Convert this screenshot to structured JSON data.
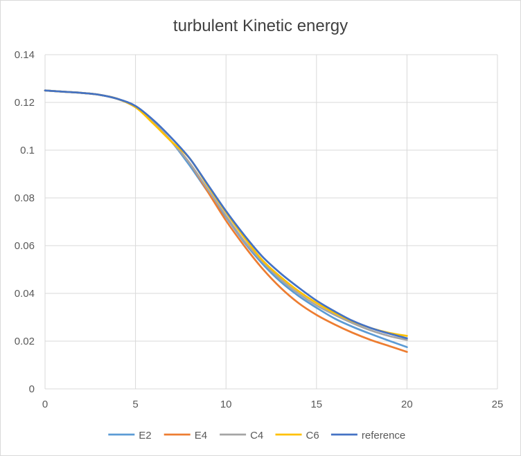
{
  "chart_data": {
    "type": "line",
    "title": "turbulent  Kinetic energy",
    "xlabel": "",
    "ylabel": "",
    "xlim": [
      0,
      25
    ],
    "ylim": [
      0,
      0.14
    ],
    "x_ticks": [
      "0",
      "5",
      "10",
      "15",
      "20",
      "25"
    ],
    "y_ticks": [
      "0",
      "0.02",
      "0.04",
      "0.06",
      "0.08",
      "0.1",
      "0.12",
      "0.14"
    ],
    "grid": true,
    "legend_position": "bottom",
    "series": [
      {
        "name": "E2",
        "color": "#5b9bd5",
        "x": [
          0,
          1,
          2,
          3,
          4,
          5,
          6,
          7,
          8,
          9,
          10,
          11,
          12,
          13,
          14,
          15,
          16,
          17,
          18,
          19,
          20
        ],
        "y": [
          0.125,
          0.1245,
          0.124,
          0.1232,
          0.1215,
          0.118,
          0.1115,
          0.1035,
          0.0935,
          0.0825,
          0.072,
          0.0615,
          0.0525,
          0.045,
          0.039,
          0.034,
          0.0295,
          0.026,
          0.023,
          0.0202,
          0.0175
        ]
      },
      {
        "name": "E4",
        "color": "#ed7d31",
        "x": [
          0,
          1,
          2,
          3,
          4,
          5,
          6,
          7,
          8,
          9,
          10,
          11,
          12,
          13,
          14,
          15,
          16,
          17,
          18,
          19,
          20
        ],
        "y": [
          0.125,
          0.1245,
          0.124,
          0.1232,
          0.1215,
          0.118,
          0.1115,
          0.1035,
          0.0945,
          0.0825,
          0.0705,
          0.06,
          0.0505,
          0.0425,
          0.036,
          0.031,
          0.027,
          0.0235,
          0.0205,
          0.018,
          0.0155
        ]
      },
      {
        "name": "C4",
        "color": "#a5a5a5",
        "x": [
          0,
          1,
          2,
          3,
          4,
          5,
          6,
          7,
          8,
          9,
          10,
          11,
          12,
          13,
          14,
          15,
          16,
          17,
          18,
          19,
          20
        ],
        "y": [
          0.125,
          0.1245,
          0.124,
          0.1232,
          0.1215,
          0.118,
          0.1115,
          0.1035,
          0.0945,
          0.0835,
          0.0725,
          0.062,
          0.0535,
          0.046,
          0.04,
          0.035,
          0.031,
          0.0275,
          0.0245,
          0.0222,
          0.0205
        ]
      },
      {
        "name": "C6",
        "color": "#ffc000",
        "x": [
          0,
          1,
          2,
          3,
          4,
          5,
          6,
          7,
          8,
          9,
          10,
          11,
          12,
          13,
          14,
          15,
          16,
          17,
          18,
          19,
          20
        ],
        "y": [
          0.125,
          0.1245,
          0.124,
          0.1232,
          0.1215,
          0.118,
          0.111,
          0.1035,
          0.0965,
          0.085,
          0.074,
          0.0635,
          0.054,
          0.047,
          0.041,
          0.036,
          0.0318,
          0.0283,
          0.0255,
          0.0235,
          0.0222
        ]
      },
      {
        "name": "reference",
        "color": "#4472c4",
        "x": [
          0,
          1,
          2,
          3,
          4,
          5,
          6,
          7,
          8,
          9,
          10,
          11,
          12,
          13,
          14,
          15,
          16,
          17,
          18,
          19,
          20
        ],
        "y": [
          0.125,
          0.1245,
          0.124,
          0.1232,
          0.1215,
          0.1185,
          0.1125,
          0.105,
          0.0965,
          0.0855,
          0.0745,
          0.0645,
          0.0555,
          0.0485,
          0.0425,
          0.037,
          0.0325,
          0.0285,
          0.0255,
          0.0232,
          0.0212
        ]
      }
    ]
  }
}
